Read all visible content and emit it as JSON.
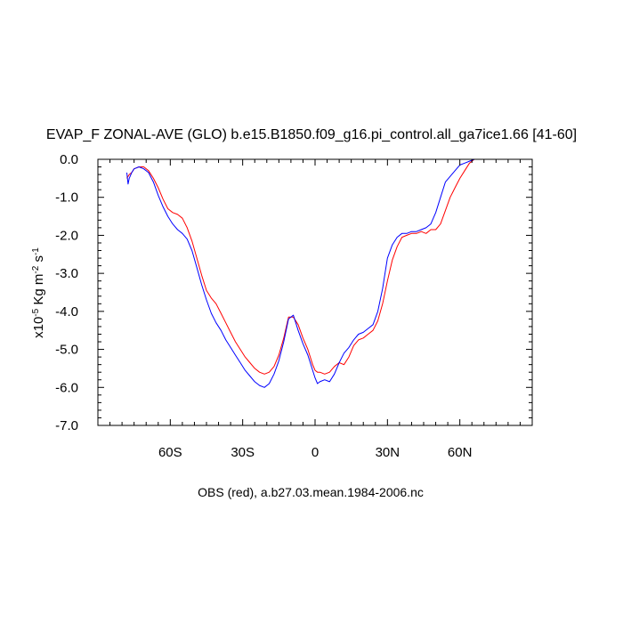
{
  "chart_data": {
    "type": "line",
    "title": "EVAP_F ZONAL-AVE (GLO) b.e15.B1850.f09_g16.pi_control.all_ga7ice1.66 [41-60]",
    "xlabel": "OBS (red), a.b27.03.mean.1984-2006.nc",
    "ylabel": {
      "prefix": "x10",
      "exp": "-5",
      "unit": " Kg m",
      "unit_exp": "-2",
      "unit2": " s",
      "unit2_exp": "-1"
    },
    "xlim": [
      -90,
      90
    ],
    "ylim": [
      -7,
      0
    ],
    "xticks": [
      {
        "v": -60,
        "label": "60S"
      },
      {
        "v": -30,
        "label": "30S"
      },
      {
        "v": 0,
        "label": "0"
      },
      {
        "v": 30,
        "label": "30N"
      },
      {
        "v": 60,
        "label": "60N"
      }
    ],
    "yticks": [
      {
        "v": 0,
        "label": "0.0"
      },
      {
        "v": -1,
        "label": "-1.0"
      },
      {
        "v": -2,
        "label": "-2.0"
      },
      {
        "v": -3,
        "label": "-3.0"
      },
      {
        "v": -4,
        "label": "-4.0"
      },
      {
        "v": -5,
        "label": "-5.0"
      },
      {
        "v": -6,
        "label": "-6.0"
      },
      {
        "v": -7,
        "label": "-7.0"
      }
    ],
    "grid": false,
    "series": [
      {
        "color": "#ff0000",
        "x": [
          -78,
          -77.5,
          -77,
          -76,
          -75,
          -73,
          -71,
          -69,
          -67,
          -65,
          -63,
          -61,
          -59,
          -57,
          -55,
          -53,
          -51,
          -49,
          -47,
          -45,
          -43,
          -41,
          -39,
          -37,
          -35,
          -33,
          -31,
          -29,
          -27,
          -25,
          -23,
          -21,
          -19,
          -17,
          -15,
          -13,
          -11,
          -9,
          -7,
          -5,
          -3,
          -2,
          -1,
          0,
          1,
          2,
          4,
          6,
          8,
          10,
          12,
          14,
          16,
          18,
          20,
          22,
          24,
          26,
          28,
          30,
          32,
          34,
          36,
          38,
          40,
          42,
          44,
          46,
          48,
          50,
          52,
          54,
          56,
          58,
          60,
          62,
          64,
          66,
          68,
          70,
          72,
          74,
          76,
          78,
          80,
          82,
          84,
          86,
          88,
          90
        ],
        "y": [
          -0.5,
          -0.45,
          -0.4,
          -0.35,
          -0.25,
          -0.2,
          -0.2,
          -0.3,
          -0.5,
          -0.75,
          -1.05,
          -1.3,
          -1.4,
          -1.45,
          -1.55,
          -1.8,
          -2.15,
          -2.6,
          -3.05,
          -3.45,
          -3.65,
          -3.8,
          -4.05,
          -4.3,
          -4.55,
          -4.8,
          -5.0,
          -5.2,
          -5.35,
          -5.5,
          -5.6,
          -5.65,
          -5.6,
          -5.45,
          -5.15,
          -4.7,
          -4.15,
          -4.15,
          -4.35,
          -4.7,
          -5.0,
          -5.2,
          -5.4,
          -5.55,
          -5.6,
          -5.6,
          -5.65,
          -5.6,
          -5.45,
          -5.35,
          -5.4,
          -5.2,
          -4.9,
          -4.75,
          -4.7,
          -4.6,
          -4.5,
          -4.25,
          -3.8,
          -3.2,
          -2.65,
          -2.3,
          -2.05,
          -2.0,
          -1.95,
          -1.95,
          -1.9,
          -1.95,
          -1.85,
          -1.85,
          -1.7,
          -1.35,
          -1.0,
          -0.75,
          -0.5,
          -0.3,
          -0.1,
          0.0,
          0.0,
          0.0,
          0.0,
          0.0,
          0.0,
          0.0,
          0.0,
          0.0,
          0.0,
          0.0,
          0.0,
          0.0
        ]
      },
      {
        "color": "#0000ff",
        "x": [
          -78,
          -77.5,
          -77,
          -76,
          -75,
          -73,
          -71,
          -69,
          -67,
          -65,
          -63,
          -61,
          -59,
          -57,
          -55,
          -53,
          -51,
          -49,
          -47,
          -45,
          -43,
          -41,
          -39,
          -37,
          -35,
          -33,
          -31,
          -29,
          -27,
          -25,
          -23,
          -21,
          -19,
          -17,
          -15,
          -13,
          -11,
          -9,
          -7,
          -5,
          -3,
          -2,
          -1,
          0,
          1,
          2,
          4,
          6,
          8,
          10,
          12,
          14,
          16,
          18,
          20,
          22,
          24,
          26,
          28,
          30,
          32,
          34,
          36,
          38,
          40,
          42,
          44,
          46,
          48,
          50,
          52,
          54,
          56,
          58,
          60,
          62,
          64,
          66,
          68,
          70,
          72,
          74,
          76,
          78,
          80,
          82,
          84,
          86,
          88,
          90
        ],
        "y": [
          -0.35,
          -0.65,
          -0.5,
          -0.35,
          -0.25,
          -0.2,
          -0.25,
          -0.35,
          -0.6,
          -0.95,
          -1.25,
          -1.5,
          -1.7,
          -1.85,
          -1.95,
          -2.1,
          -2.4,
          -2.85,
          -3.3,
          -3.7,
          -4.05,
          -4.3,
          -4.5,
          -4.75,
          -4.95,
          -5.15,
          -5.35,
          -5.55,
          -5.7,
          -5.85,
          -5.95,
          -6.0,
          -5.9,
          -5.65,
          -5.3,
          -4.8,
          -4.2,
          -4.1,
          -4.5,
          -4.85,
          -5.15,
          -5.35,
          -5.55,
          -5.75,
          -5.9,
          -5.85,
          -5.8,
          -5.85,
          -5.65,
          -5.35,
          -5.1,
          -4.95,
          -4.75,
          -4.6,
          -4.55,
          -4.45,
          -4.35,
          -4.0,
          -3.4,
          -2.6,
          -2.25,
          -2.05,
          -1.95,
          -1.95,
          -1.9,
          -1.9,
          -1.85,
          -1.8,
          -1.7,
          -1.4,
          -1.0,
          -0.6,
          -0.45,
          -0.3,
          -0.15,
          -0.1,
          -0.05,
          0.0,
          0.0,
          0.0,
          0.0,
          0.0,
          0.0,
          0.0,
          0.0,
          0.0,
          0.0,
          0.0,
          0.0,
          0.0
        ]
      }
    ]
  }
}
